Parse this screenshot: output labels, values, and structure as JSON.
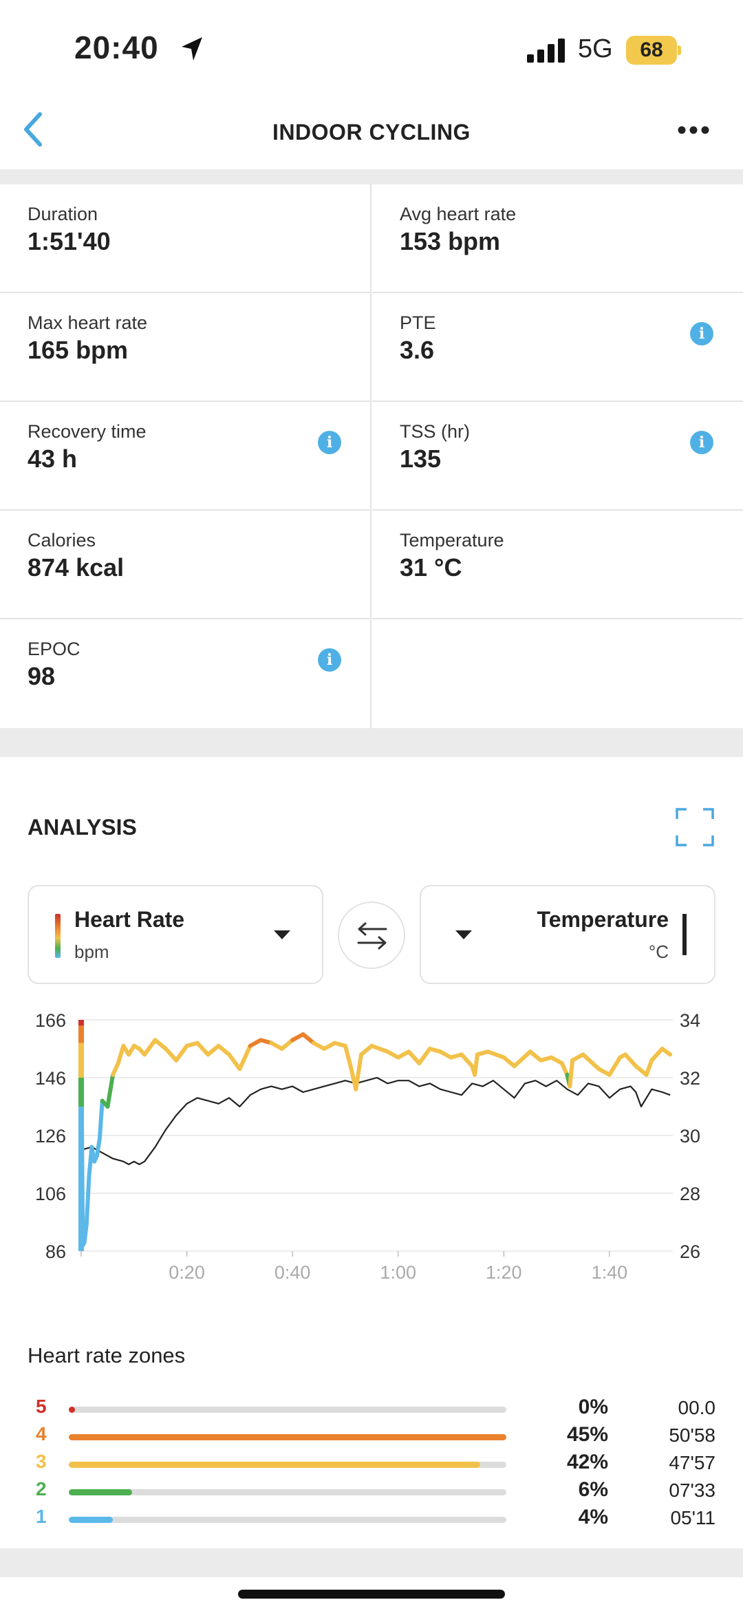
{
  "status": {
    "time": "20:40",
    "network": "5G",
    "battery": "68"
  },
  "header": {
    "title": "INDOOR CYCLING"
  },
  "stats": [
    {
      "label": "Duration",
      "value": "1:51'40",
      "info": false
    },
    {
      "label": "Avg heart rate",
      "value": "153 bpm",
      "info": false
    },
    {
      "label": "Max heart rate",
      "value": "165 bpm",
      "info": false
    },
    {
      "label": "PTE",
      "value": "3.6",
      "info": true
    },
    {
      "label": "Recovery time",
      "value": "43 h",
      "info": true
    },
    {
      "label": "TSS (hr)",
      "value": "135",
      "info": true
    },
    {
      "label": "Calories",
      "value": "874 kcal",
      "info": false
    },
    {
      "label": "Temperature",
      "value": "31 °C",
      "info": false
    },
    {
      "label": "EPOC",
      "value": "98",
      "info": true
    }
  ],
  "analysis": {
    "title": "ANALYSIS",
    "left_selector": {
      "name": "Heart Rate",
      "unit": "bpm"
    },
    "right_selector": {
      "name": "Temperature",
      "unit": "°C"
    }
  },
  "chart_data": {
    "type": "line",
    "left_axis": {
      "ticks": [
        "166",
        "146",
        "126",
        "106",
        "86"
      ],
      "ylim": [
        86,
        166
      ]
    },
    "right_axis": {
      "ticks": [
        "34",
        "32",
        "30",
        "28",
        "26"
      ],
      "ylim": [
        26,
        34
      ]
    },
    "x_ticks": [
      "0:20",
      "0:40",
      "1:00",
      "1:20",
      "1:40"
    ],
    "x_range_min": [
      0,
      112
    ],
    "series": [
      {
        "name": "Heart Rate",
        "axis": "left",
        "x": [
          0,
          0.3,
          0.6,
          1,
          1.5,
          2,
          2.5,
          3,
          3.5,
          4,
          5,
          6,
          7,
          8,
          9,
          10,
          11,
          12,
          14,
          16,
          18,
          20,
          22,
          24,
          26,
          28,
          30,
          32,
          34,
          36,
          38,
          40,
          42,
          44,
          46,
          48,
          50,
          51,
          52,
          53,
          55,
          58,
          60,
          62,
          64,
          66,
          68,
          70,
          72,
          74,
          74.5,
          75,
          77,
          80,
          82,
          85,
          87,
          89,
          91,
          92,
          92.5,
          93,
          95,
          98,
          100,
          102,
          103,
          105,
          107,
          108,
          110,
          111.5
        ],
        "y": [
          164,
          88,
          89,
          95,
          112,
          122,
          117,
          119,
          125,
          138,
          136,
          147,
          151,
          157,
          154,
          157,
          156,
          154,
          159,
          156,
          152,
          157,
          158,
          154,
          157,
          154,
          149,
          157,
          159,
          158,
          156,
          159,
          161,
          158,
          156,
          158,
          157,
          150,
          142,
          154,
          157,
          155,
          153,
          155,
          151,
          156,
          155,
          153,
          154,
          150,
          147,
          154,
          155,
          153,
          150,
          155,
          152,
          153,
          151,
          147,
          143,
          152,
          154,
          149,
          147,
          153,
          154,
          150,
          147,
          152,
          156,
          154
        ]
      },
      {
        "name": "Temperature",
        "axis": "right",
        "x": [
          0,
          2,
          4,
          6,
          8,
          9,
          10,
          11,
          12,
          14,
          16,
          18,
          20,
          22,
          24,
          26,
          28,
          30,
          32,
          34,
          36,
          38,
          40,
          42,
          44,
          46,
          48,
          50,
          52,
          54,
          56,
          58,
          60,
          62,
          64,
          66,
          68,
          70,
          72,
          74,
          76,
          78,
          80,
          82,
          84,
          86,
          88,
          90,
          92,
          94,
          96,
          98,
          100,
          102,
          104,
          105,
          106,
          108,
          110,
          111.5
        ],
        "y": [
          29.5,
          29.6,
          29.4,
          29.2,
          29.1,
          29.0,
          29.1,
          29.0,
          29.1,
          29.6,
          30.2,
          30.7,
          31.1,
          31.3,
          31.2,
          31.1,
          31.3,
          31.0,
          31.4,
          31.6,
          31.7,
          31.6,
          31.7,
          31.5,
          31.6,
          31.7,
          31.8,
          31.9,
          31.8,
          31.9,
          32.0,
          31.8,
          31.9,
          31.9,
          31.7,
          31.8,
          31.6,
          31.5,
          31.4,
          31.8,
          31.7,
          31.9,
          31.6,
          31.3,
          31.8,
          31.9,
          31.7,
          31.9,
          31.6,
          31.4,
          31.8,
          31.7,
          31.3,
          31.6,
          31.7,
          31.5,
          31.0,
          31.6,
          31.5,
          31.4
        ]
      }
    ]
  },
  "zones": {
    "title": "Heart rate zones",
    "rows": [
      {
        "zone": "5",
        "percent": "0%",
        "fraction": 0.005,
        "time": "00.0",
        "color": "#d0302a"
      },
      {
        "zone": "4",
        "percent": "45%",
        "fraction": 1.0,
        "time": "50'58",
        "color": "#e9812d"
      },
      {
        "zone": "3",
        "percent": "42%",
        "fraction": 0.94,
        "time": "47'57",
        "color": "#f2c14a"
      },
      {
        "zone": "2",
        "percent": "6%",
        "fraction": 0.145,
        "time": "07'33",
        "color": "#4caf50"
      },
      {
        "zone": "1",
        "percent": "4%",
        "fraction": 0.1,
        "time": "05'11",
        "color": "#5bb8e8"
      }
    ]
  }
}
